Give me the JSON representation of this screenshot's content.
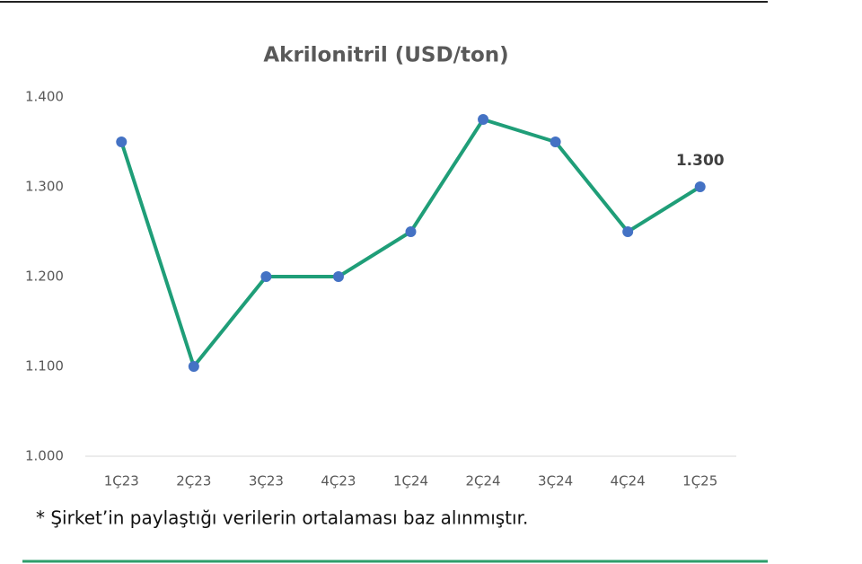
{
  "chart_data": {
    "type": "line",
    "title": "Akrilonitril (USD/ton)",
    "categories": [
      "1Ç23",
      "2Ç23",
      "3Ç23",
      "4Ç23",
      "1Ç24",
      "2Ç24",
      "3Ç24",
      "4Ç24",
      "1Ç25"
    ],
    "values": [
      1350,
      1100,
      1200,
      1200,
      1250,
      1375,
      1350,
      1250,
      1300
    ],
    "value_labels": [
      null,
      null,
      null,
      null,
      null,
      null,
      null,
      null,
      "1.300"
    ],
    "color": "#1f9e78",
    "marker_color": "#4472c4",
    "ylim": [
      1000,
      1400
    ],
    "yticks": [
      {
        "value": 1000,
        "label": "1.000"
      },
      {
        "value": 1100,
        "label": "1.100"
      },
      {
        "value": 1200,
        "label": "1.200"
      },
      {
        "value": 1300,
        "label": "1.300"
      },
      {
        "value": 1400,
        "label": "1.400"
      }
    ],
    "grid": false,
    "footnote": "* Şirket’in paylaştığı verilerin ortalaması baz alınmıştır."
  }
}
